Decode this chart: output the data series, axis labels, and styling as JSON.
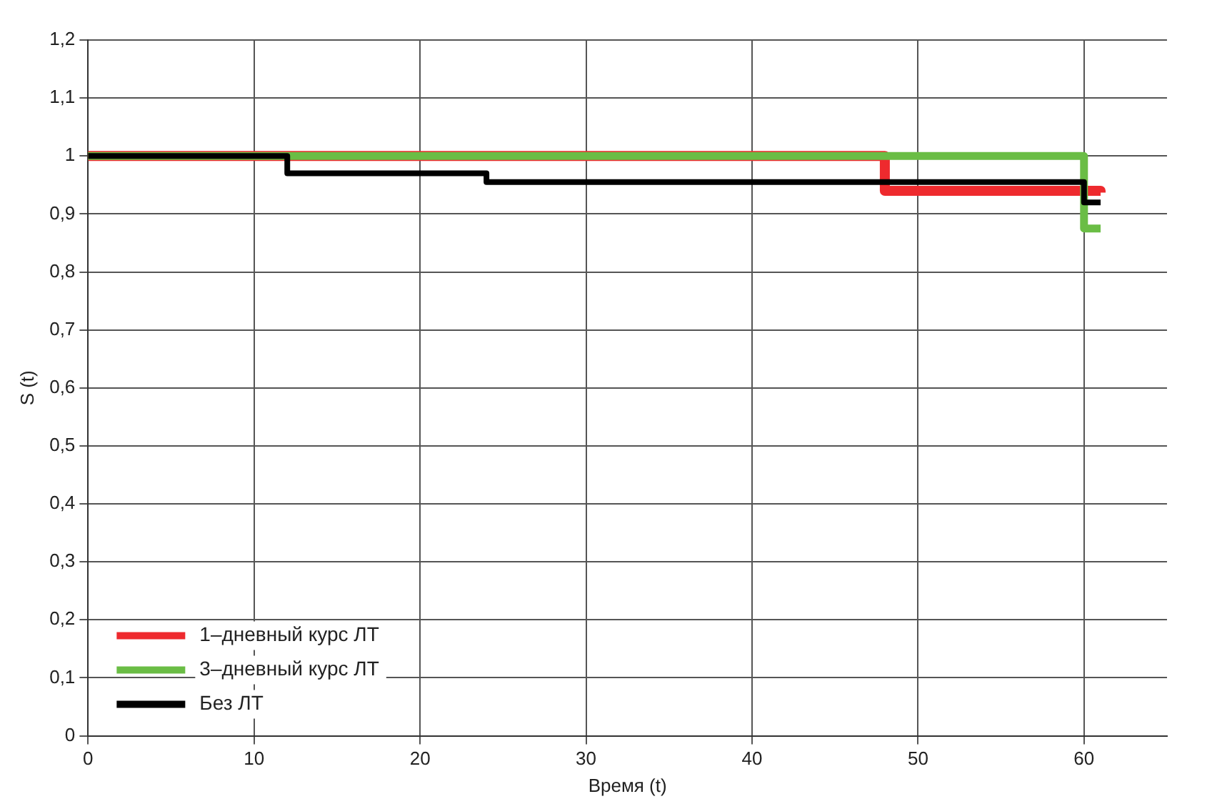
{
  "chart_data": {
    "type": "step",
    "xlabel": "Время (t)",
    "ylabel": "S (t)",
    "xlim": [
      0,
      65
    ],
    "xticks": [
      0,
      10,
      20,
      30,
      40,
      50,
      60
    ],
    "ylim": [
      0,
      1.2
    ],
    "yticks": [
      0,
      {
        "value": 0.1,
        "label": "0,1"
      },
      {
        "value": 0.2,
        "label": "0,2"
      },
      {
        "value": 0.3,
        "label": "0,3"
      },
      {
        "value": 0.4,
        "label": "0,4"
      },
      {
        "value": 0.5,
        "label": "0,5"
      },
      {
        "value": 0.6,
        "label": "0,6"
      },
      {
        "value": 0.7,
        "label": "0,7"
      },
      {
        "value": 0.8,
        "label": "0,8"
      },
      {
        "value": 0.9,
        "label": "0,9"
      },
      1,
      {
        "value": 1.1,
        "label": "1,1"
      },
      {
        "value": 1.2,
        "label": "1,2"
      }
    ],
    "grid": true,
    "legend": "bottom left",
    "marker": "none",
    "series": [
      {
        "name": "1–дневный курс ЛТ",
        "color": "#ee2a2e",
        "x": [
          0,
          48,
          61
        ],
        "values": [
          1,
          0.94,
          0.937
        ]
      },
      {
        "name": "3–дневный курс ЛТ",
        "color": "#6abd45",
        "x": [
          0,
          60,
          61
        ],
        "values": [
          1,
          0.875,
          0.875
        ]
      },
      {
        "name": "Без ЛТ",
        "color": "#000000",
        "x": [
          0,
          12,
          24,
          60,
          61
        ],
        "values": [
          1,
          0.97,
          0.955,
          0.92,
          0.92
        ]
      }
    ]
  }
}
